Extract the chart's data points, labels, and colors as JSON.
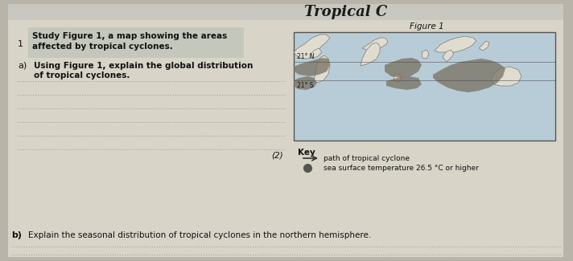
{
  "bg_color": "#b8b4aa",
  "paper_color": "#d8d4c8",
  "header_color": "#c8c8c0",
  "header_text": "Tropical C",
  "figure_label": "Figure 1",
  "question_number": "1",
  "question_text_line1": "Study Figure 1, a map showing the areas",
  "question_text_line2": "affected by tropical cyclones.",
  "part_a_label": "a)",
  "part_a_text_line1": "Using Figure 1, explain the global distribution",
  "part_a_text_line2": "of tropical cyclones.",
  "part_b_label": "b)",
  "part_b_text": "Explain the seasonal distribution of tropical cyclones in the northern hemisphere.",
  "marks_a": "(2)",
  "key_title": "Key",
  "key_line_text": "path of tropical cyclone",
  "key_dot_text": "sea surface temperature 26.5 °C or higher",
  "lat_north": "21° N",
  "lat_south": "21° S",
  "map_bg": "#b8ccd8",
  "land_color": "#e0dcd0",
  "cyclone_color": "#787060",
  "dotted_line_color": "#888880",
  "num_answer_lines_a": 6,
  "num_answer_lines_b": 2,
  "q_box_color": "#c0c4b8"
}
